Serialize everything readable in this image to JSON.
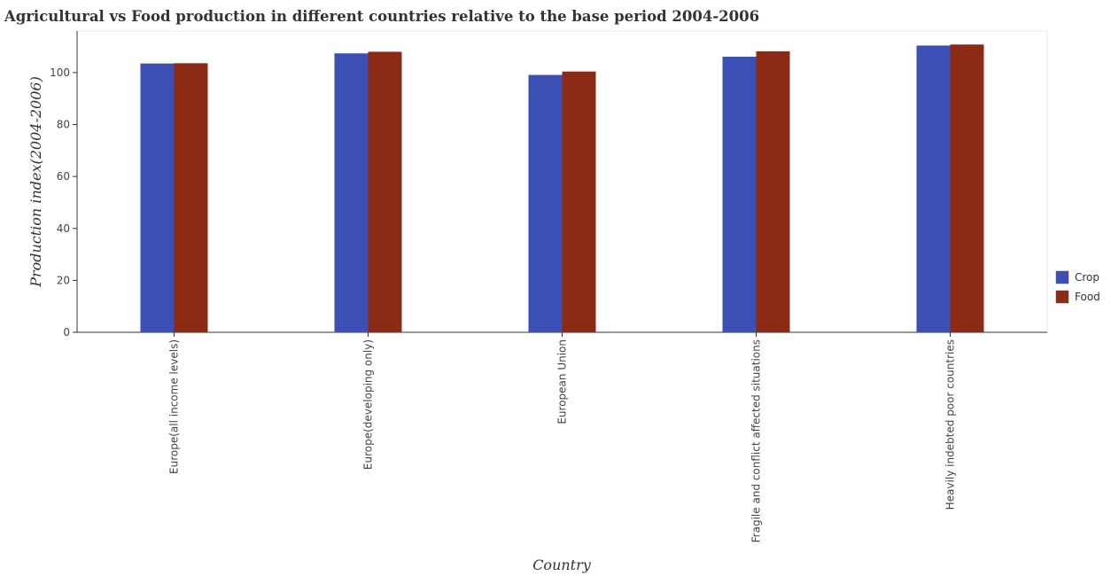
{
  "chart_data": {
    "type": "bar",
    "title": "Agricultural vs Food production in different countries relative to the base period 2004-2006",
    "xlabel": "Country",
    "ylabel": "Production index(2004-2006)",
    "categories": [
      "Europe(all income levels)",
      "Europe(developing only)",
      "European Union",
      "Fragile and conflict affected situations",
      "Heavily indebted poor countries"
    ],
    "series": [
      {
        "name": "Crop",
        "color": "#3c4fb4",
        "values": [
          103.5,
          107.4,
          99.1,
          106.1,
          110.4
        ]
      },
      {
        "name": "Food",
        "color": "#8b2a15",
        "values": [
          103.6,
          108.0,
          100.4,
          108.2,
          110.8
        ]
      }
    ],
    "ylim": [
      0,
      116
    ],
    "yticks": [
      0,
      20,
      40,
      60,
      80,
      100
    ],
    "grid": false,
    "legend_position": "right"
  }
}
